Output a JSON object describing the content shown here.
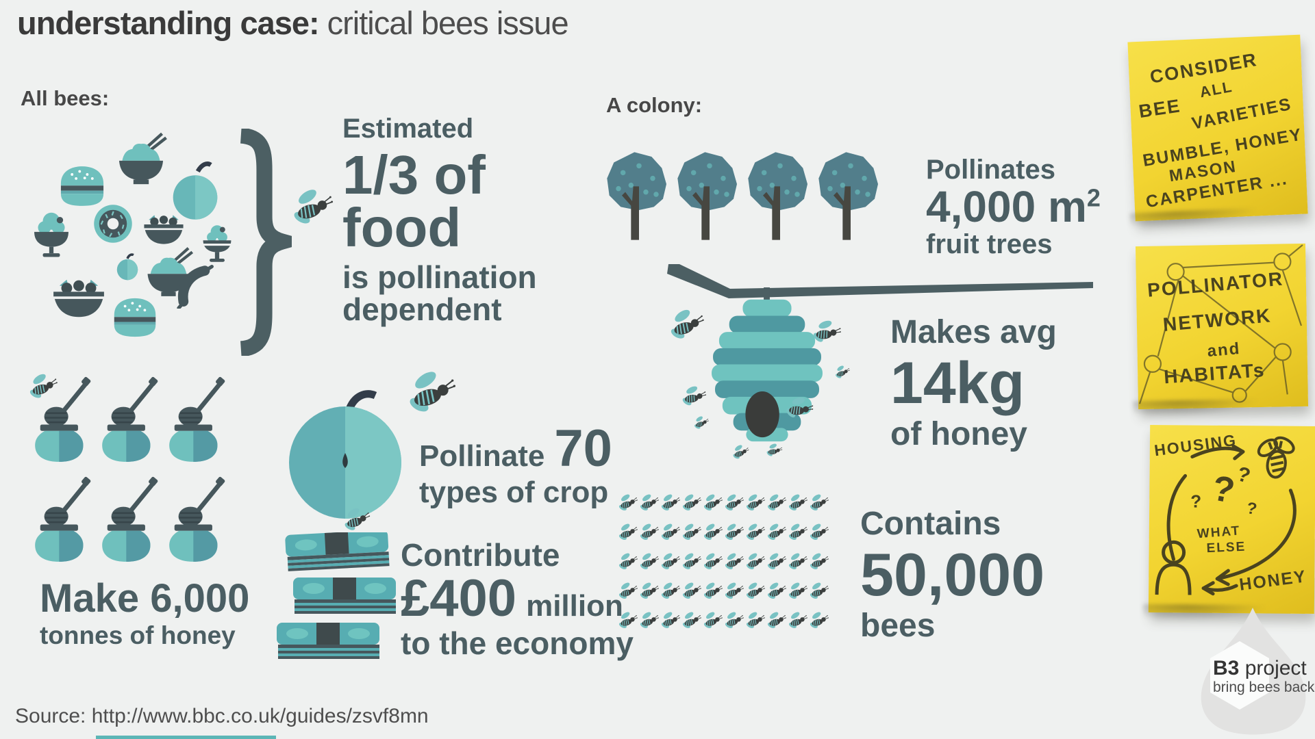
{
  "title": {
    "strong": "understanding case:",
    "light": "critical bees issue"
  },
  "source_label": "Source: http://www.bbc.co.uk/guides/zsvf8mn",
  "all_bees": {
    "heading": "All bees:",
    "pollination_stat": {
      "intro": "Estimated",
      "big1": "1/3 of",
      "big2": "food",
      "line3": "is pollination",
      "line4": "dependent"
    },
    "honey_stat": {
      "big": "Make 6,000",
      "sub": "tonnes of honey",
      "pots": 6
    },
    "crop_stat": {
      "lead": "Pollinate",
      "big": "70",
      "sub": "types of crop"
    },
    "economy_stat": {
      "intro": "Contribute",
      "big": "£400",
      "unit": "million",
      "sub": "to the economy"
    }
  },
  "colony": {
    "heading": "A colony:",
    "trees_stat": {
      "intro": "Pollinates",
      "big": "4,000 m",
      "sup": "2",
      "sub": "fruit trees",
      "trees": 4
    },
    "hive_stat": {
      "intro": "Makes avg",
      "big": "14kg",
      "sub": "of honey"
    },
    "bees_stat": {
      "intro": "Contains",
      "big": "50,000",
      "sub": "bees",
      "grid": {
        "rows": 5,
        "cols": 10
      }
    }
  },
  "notes": {
    "note1": {
      "l1": "CONSIDER",
      "l2": "ALL",
      "l3": "BEE",
      "l4": "VARIETIES",
      "l5": "BUMBLE, HONEY",
      "l6": "MASON",
      "l7": "CARPENTER ..."
    },
    "note2": {
      "l1": "POLLINATOR",
      "l2": "NETWORK",
      "l3": "and",
      "l4": "HABITATs"
    },
    "note3": {
      "housing": "HOUSING",
      "q_big": "?",
      "q1": "?",
      "q2": "?",
      "q3": "?",
      "what1": "WHAT",
      "what2": "ELSE",
      "honey": "HONEY"
    }
  },
  "logo": {
    "name_strong": "B3",
    "name_rest": "project",
    "tagline": "bring bees back"
  },
  "colors": {
    "teal": "#6fc0bd",
    "teal_dark": "#4f99a1",
    "tree": "#527e8b",
    "slate": "#4b5e63",
    "ink": "#4a431f",
    "note_yellow": "#f2d431",
    "background": "#eff1f0"
  }
}
